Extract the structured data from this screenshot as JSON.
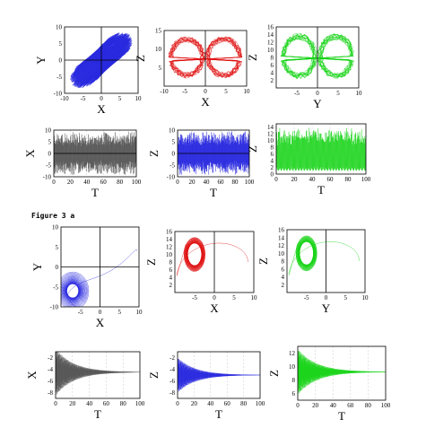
{
  "figure_label": "Figure 3 a",
  "colors": {
    "blue": "#2a2ae0",
    "red": "#e01414",
    "green": "#18d418",
    "gray": "#555555"
  },
  "chart_data": [
    {
      "id": "p1",
      "type": "line",
      "xlabel": "X",
      "ylabel": "Y",
      "xlim": [
        -10,
        10
      ],
      "ylim": [
        -10,
        10
      ],
      "xticks": [
        "-10",
        "-5",
        "0",
        "5",
        "10"
      ],
      "yticks": [
        "10",
        "5",
        "0",
        "-5",
        "-10"
      ],
      "color": "blue",
      "shape": "diagonal-attractor"
    },
    {
      "id": "p2",
      "type": "line",
      "xlabel": "X",
      "ylabel": "Z",
      "xlim": [
        -10,
        10
      ],
      "ylim": [
        0,
        15
      ],
      "xticks": [
        "-10",
        "-5",
        "0",
        "5",
        "10"
      ],
      "yticks": [
        "15",
        "10",
        "5"
      ],
      "color": "red",
      "shape": "butterfly"
    },
    {
      "id": "p3",
      "type": "line",
      "xlabel": "Y",
      "ylabel": "Z",
      "xlim": [
        -10,
        10
      ],
      "ylim": [
        0,
        16
      ],
      "xticks": [
        "-5",
        "0",
        "5",
        "10"
      ],
      "yticks": [
        "16",
        "14",
        "12",
        "10",
        "8",
        "6",
        "4",
        "2"
      ],
      "color": "green",
      "shape": "butterfly"
    },
    {
      "id": "p4",
      "type": "line",
      "xlabel": "T",
      "ylabel": "X",
      "xlim": [
        0,
        100
      ],
      "ylim": [
        -10,
        10
      ],
      "xticks": [
        "0",
        "20",
        "40",
        "60",
        "80",
        "100"
      ],
      "yticks": [
        "10",
        "5",
        "0",
        "-5",
        "-10"
      ],
      "color": "gray",
      "shape": "chaotic-time"
    },
    {
      "id": "p5",
      "type": "line",
      "xlabel": "T",
      "ylabel": "Z",
      "xlim": [
        0,
        100
      ],
      "ylim": [
        -10,
        10
      ],
      "xticks": [
        "0",
        "20",
        "40",
        "60",
        "80",
        "100"
      ],
      "yticks": [
        "10",
        "5",
        "0",
        "-5",
        "-10"
      ],
      "color": "blue",
      "shape": "chaotic-time"
    },
    {
      "id": "p6",
      "type": "line",
      "xlabel": "T",
      "ylabel": "Z",
      "xlim": [
        0,
        100
      ],
      "ylim": [
        0,
        15
      ],
      "xticks": [
        "0",
        "20",
        "40",
        "60",
        "80",
        "100"
      ],
      "yticks": [
        "14",
        "12",
        "10",
        "8",
        "6",
        "4",
        "2",
        "0"
      ],
      "color": "green",
      "shape": "chaotic-dense"
    },
    {
      "id": "p7",
      "type": "line",
      "xlabel": "X",
      "ylabel": "Y",
      "xlim": [
        -10,
        10
      ],
      "ylim": [
        -10,
        10
      ],
      "xticks": [
        "-5",
        "0",
        "5",
        "10"
      ],
      "yticks": [
        "10",
        "5",
        "0",
        "-5",
        "-10"
      ],
      "color": "blue",
      "shape": "settling-diagonal"
    },
    {
      "id": "p8",
      "type": "line",
      "xlabel": "X",
      "ylabel": "Z",
      "xlim": [
        -10,
        10
      ],
      "ylim": [
        0,
        16
      ],
      "xticks": [
        "-5",
        "0",
        "5",
        "10"
      ],
      "yticks": [
        "16",
        "14",
        "12",
        "10",
        "8",
        "6",
        "4",
        "2"
      ],
      "color": "red",
      "shape": "settling-lobe"
    },
    {
      "id": "p9",
      "type": "line",
      "xlabel": "Y",
      "ylabel": "Z",
      "xlim": [
        -10,
        10
      ],
      "ylim": [
        0,
        16
      ],
      "xticks": [
        "-5",
        "0",
        "5",
        "10"
      ],
      "yticks": [
        "16",
        "14",
        "12",
        "10",
        "8",
        "6",
        "4",
        "2"
      ],
      "color": "green",
      "shape": "settling-lobe"
    },
    {
      "id": "p10",
      "type": "line",
      "xlabel": "T",
      "ylabel": "X",
      "xlim": [
        0,
        100
      ],
      "ylim": [
        -9,
        -1
      ],
      "xticks": [
        "0",
        "20",
        "40",
        "60",
        "80",
        "100"
      ],
      "yticks": [
        "-2",
        "-4",
        "-6",
        "-8"
      ],
      "color": "gray",
      "shape": "damped-time",
      "center": -4.5,
      "amp0": 4
    },
    {
      "id": "p11",
      "type": "line",
      "xlabel": "T",
      "ylabel": "Z",
      "xlim": [
        0,
        100
      ],
      "ylim": [
        -9,
        -1
      ],
      "xticks": [
        "0",
        "20",
        "40",
        "60",
        "80",
        "100"
      ],
      "yticks": [
        "-2",
        "-4",
        "-6",
        "-8"
      ],
      "color": "blue",
      "shape": "damped-time",
      "center": -5,
      "amp0": 3
    },
    {
      "id": "p12",
      "type": "line",
      "xlabel": "T",
      "ylabel": "Z",
      "xlim": [
        0,
        100
      ],
      "ylim": [
        5,
        13
      ],
      "xticks": [
        "0",
        "20",
        "40",
        "60",
        "80",
        "100"
      ],
      "yticks": [
        "12",
        "10",
        "8",
        "6"
      ],
      "color": "green",
      "shape": "damped-time",
      "center": 9.2,
      "amp0": 3.4
    }
  ]
}
